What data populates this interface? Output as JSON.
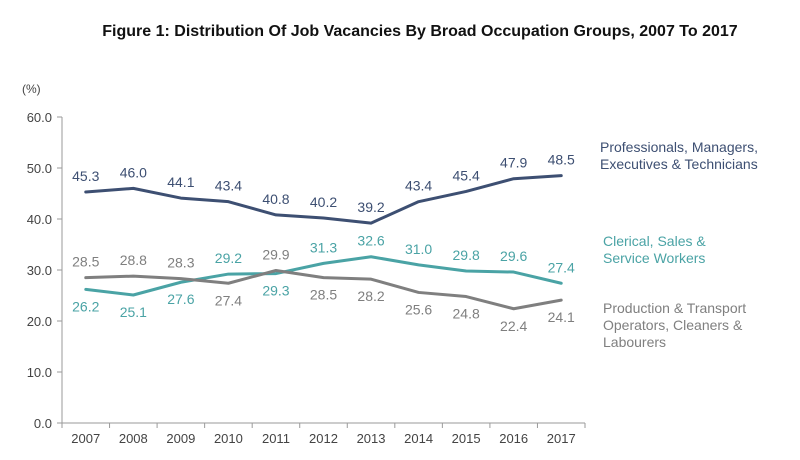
{
  "chart_data": {
    "type": "line",
    "title": "Figure 1: Distribution Of Job Vacancies By Broad Occupation Groups, 2007 To 2017",
    "ylabel": "(%)",
    "xlabel": "",
    "ylim": [
      0,
      60
    ],
    "yticks": [
      "0.0",
      "10.0",
      "20.0",
      "30.0",
      "40.0",
      "50.0",
      "60.0"
    ],
    "categories": [
      "2007",
      "2008",
      "2009",
      "2010",
      "2011",
      "2012",
      "2013",
      "2014",
      "2015",
      "2016",
      "2017"
    ],
    "grid": false,
    "legend": "right, labels beside line ends",
    "series": [
      {
        "name": "Professionals, Managers, Executives & Technicians",
        "name_lines": [
          "Professionals, Managers,",
          "Executives & Technicians"
        ],
        "color": "#3d4f72",
        "values": [
          45.3,
          46.0,
          44.1,
          43.4,
          40.8,
          40.2,
          39.2,
          43.4,
          45.4,
          47.9,
          48.5
        ],
        "labels": [
          "45.3",
          "46.0",
          "44.1",
          "43.4",
          "40.8",
          "40.2",
          "39.2",
          "43.4",
          "45.4",
          "47.9",
          "48.5"
        ],
        "label_side": [
          "above",
          "above",
          "above",
          "above",
          "above",
          "above",
          "above",
          "above",
          "above",
          "above",
          "above"
        ]
      },
      {
        "name": "Clerical, Sales & Service Workers",
        "name_lines": [
          "Clerical, Sales &",
          "Service Workers"
        ],
        "color": "#4aa3a5",
        "values": [
          26.2,
          25.1,
          27.6,
          29.2,
          29.3,
          31.3,
          32.6,
          31.0,
          29.8,
          29.6,
          27.4
        ],
        "labels": [
          "26.2",
          "25.1",
          "27.6",
          "29.2",
          "29.3",
          "31.3",
          "32.6",
          "31.0",
          "29.8",
          "29.6",
          "27.4"
        ],
        "label_side": [
          "below",
          "below",
          "below",
          "above",
          "below",
          "above",
          "above",
          "above",
          "above",
          "above",
          "above"
        ]
      },
      {
        "name": "Production & Transport Operators, Cleaners & Labourers",
        "name_lines": [
          "Production & Transport",
          "Operators, Cleaners &",
          "Labourers"
        ],
        "color": "#7f7f7f",
        "values": [
          28.5,
          28.8,
          28.3,
          27.4,
          29.9,
          28.5,
          28.2,
          25.6,
          24.8,
          22.4,
          24.1
        ],
        "labels": [
          "28.5",
          "28.8",
          "28.3",
          "27.4",
          "29.9",
          "28.5",
          "28.2",
          "25.6",
          "24.8",
          "22.4",
          "24.1"
        ],
        "label_side": [
          "above",
          "above",
          "above",
          "below",
          "above",
          "below",
          "below",
          "below",
          "below",
          "below",
          "below"
        ]
      }
    ]
  }
}
